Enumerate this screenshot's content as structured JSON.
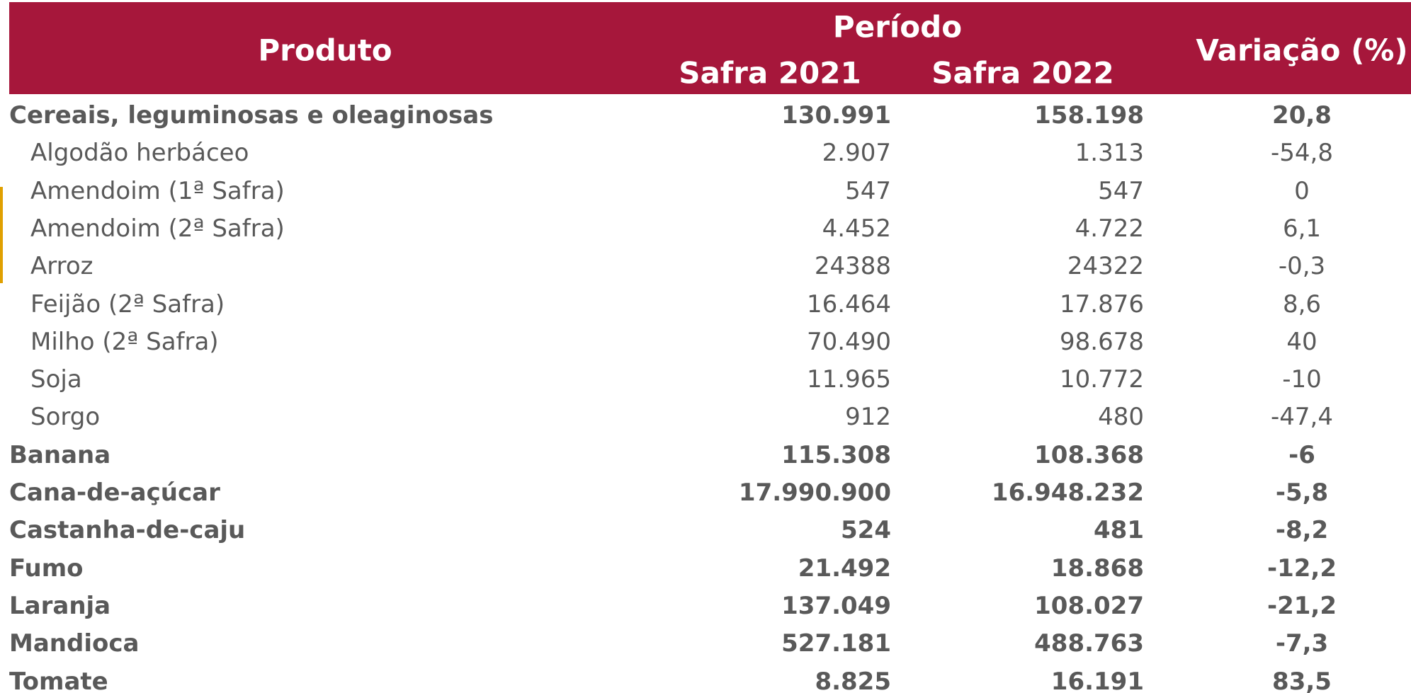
{
  "header": {
    "produto": "Produto",
    "periodo": "Período",
    "safra_2021": "Safra 2021",
    "safra_2022": "Safra 2022",
    "variacao": "Variação (%)"
  },
  "table": {
    "rows": [
      {
        "cells": [
          "Cereais, leguminosas e oleaginosas",
          "130.991",
          "158.198",
          "20,8"
        ],
        "bold": true
      },
      {
        "cells": [
          "Algodão herbáceo",
          "2.907",
          "1.313",
          "-54,8"
        ],
        "bold": false
      },
      {
        "cells": [
          "Amendoim (1ª Safra)",
          "547",
          "547",
          "0"
        ],
        "bold": false
      },
      {
        "cells": [
          "Amendoim (2ª Safra)",
          "4.452",
          "4.722",
          "6,1"
        ],
        "bold": false
      },
      {
        "cells": [
          "Arroz",
          "24388",
          "24322",
          "-0,3"
        ],
        "bold": false
      },
      {
        "cells": [
          "Feijão (2ª Safra)",
          "16.464",
          "17.876",
          "8,6"
        ],
        "bold": false
      },
      {
        "cells": [
          "Milho (2ª Safra)",
          "70.490",
          "98.678",
          "40"
        ],
        "bold": false
      },
      {
        "cells": [
          "Soja",
          "11.965",
          "10.772",
          "-10"
        ],
        "bold": false
      },
      {
        "cells": [
          "Sorgo",
          "912",
          "480",
          "-47,4"
        ],
        "bold": false
      },
      {
        "cells": [
          "Banana",
          "115.308",
          "108.368",
          "-6"
        ],
        "bold": true
      },
      {
        "cells": [
          "Cana-de-açúcar",
          "17.990.900",
          "16.948.232",
          "-5,8"
        ],
        "bold": true
      },
      {
        "cells": [
          "Castanha-de-caju",
          "524",
          "481",
          "-8,2"
        ],
        "bold": true
      },
      {
        "cells": [
          "Fumo",
          "21.492",
          "18.868",
          "-12,2"
        ],
        "bold": true
      },
      {
        "cells": [
          "Laranja",
          "137.049",
          "108.027",
          "-21,2"
        ],
        "bold": true
      },
      {
        "cells": [
          "Mandioca",
          "527.181",
          "488.763",
          "-7,3"
        ],
        "bold": true
      },
      {
        "cells": [
          "Tomate",
          "8.825",
          "16.191",
          "83,5"
        ],
        "bold": true
      }
    ]
  }
}
